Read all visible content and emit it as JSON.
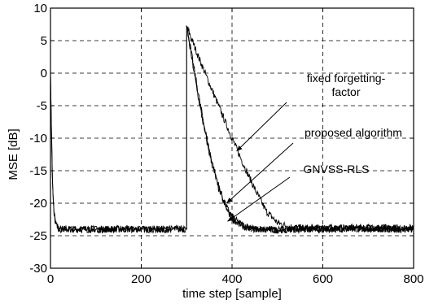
{
  "chart_data": {
    "type": "line",
    "title": "",
    "xlabel": "time step [sample]",
    "ylabel": "MSE [dB]",
    "xlim": [
      0,
      800
    ],
    "ylim": [
      -30,
      10
    ],
    "x_ticks": [
      0,
      200,
      400,
      600,
      800
    ],
    "y_ticks": [
      -30,
      -25,
      -20,
      -15,
      -10,
      -5,
      0,
      5,
      10
    ],
    "x_tick_labels": [
      "0",
      "200",
      "400",
      "600",
      "800"
    ],
    "y_tick_labels": [
      "-30",
      "-25",
      "-20",
      "-15",
      "-10",
      "-5",
      "0",
      "5",
      "10"
    ],
    "grid": true,
    "grid_style": "dashed",
    "line_color": "#000000",
    "series": [
      {
        "id": "fixed",
        "x": [
          0,
          2,
          4,
          6,
          8,
          10,
          13,
          16,
          20,
          25,
          30,
          40,
          60,
          100,
          150,
          200,
          250,
          299,
          300,
          310,
          325,
          350,
          375,
          400,
          425,
          450,
          475,
          500,
          525,
          550,
          600,
          650,
          700,
          750,
          800
        ],
        "y": [
          0,
          -8,
          -15,
          -19.5,
          -21.5,
          -22.5,
          -23.3,
          -23.7,
          -24,
          -24,
          -24,
          -24,
          -24,
          -24,
          -24,
          -24,
          -24,
          -24,
          7.3,
          5.4,
          2.7,
          -1.6,
          -5.8,
          -10.0,
          -14.0,
          -17.8,
          -21.2,
          -23.0,
          -23.6,
          -23.8,
          -23.8,
          -23.8,
          -23.7,
          -23.8,
          -23.8
        ]
      },
      {
        "id": "proposed",
        "x": [
          0,
          2,
          4,
          6,
          8,
          10,
          13,
          16,
          20,
          25,
          30,
          40,
          60,
          100,
          150,
          200,
          250,
          299,
          300,
          305,
          310,
          320,
          330,
          340,
          350,
          360,
          370,
          380,
          390,
          400,
          410,
          420,
          430,
          450,
          500,
          550,
          600,
          650,
          700,
          750,
          800
        ],
        "y": [
          0,
          -8,
          -15,
          -19.5,
          -21.5,
          -22.5,
          -23.3,
          -23.7,
          -24,
          -24,
          -24,
          -24,
          -24,
          -24,
          -24,
          -24,
          -24,
          -24,
          7.3,
          5.4,
          3.2,
          -0.8,
          -4.8,
          -8.5,
          -11.8,
          -14.7,
          -17.2,
          -19.3,
          -20.9,
          -22.0,
          -22.7,
          -23.2,
          -23.6,
          -24.0,
          -24.1,
          -24.0,
          -24.0,
          -23.9,
          -23.9,
          -24.0,
          -24.0
        ]
      },
      {
        "id": "gnvss",
        "x": [
          300,
          305,
          310,
          320,
          330,
          340,
          350,
          360,
          370,
          380,
          390,
          400,
          410,
          420,
          430,
          450,
          500,
          550,
          600,
          650,
          700,
          750,
          800
        ],
        "y": [
          7.3,
          5.0,
          2.8,
          -1.4,
          -5.4,
          -9.0,
          -12.3,
          -15.1,
          -17.6,
          -19.6,
          -21.2,
          -22.3,
          -23.0,
          -23.4,
          -23.7,
          -24.0,
          -24.1,
          -24.0,
          -24.0,
          -23.9,
          -23.9,
          -24.0,
          -24.0
        ]
      }
    ],
    "annotations": [
      {
        "id": "fixed",
        "lines": [
          "fixed forgetting-",
          "factor"
        ],
        "target": [
          410,
          -12
        ]
      },
      {
        "id": "proposed",
        "lines": [
          "proposed algorithm"
        ],
        "target": [
          388,
          -20
        ]
      },
      {
        "id": "gnvss",
        "lines": [
          "GNVSS-RLS"
        ],
        "target": [
          390,
          -22.8
        ]
      }
    ]
  }
}
